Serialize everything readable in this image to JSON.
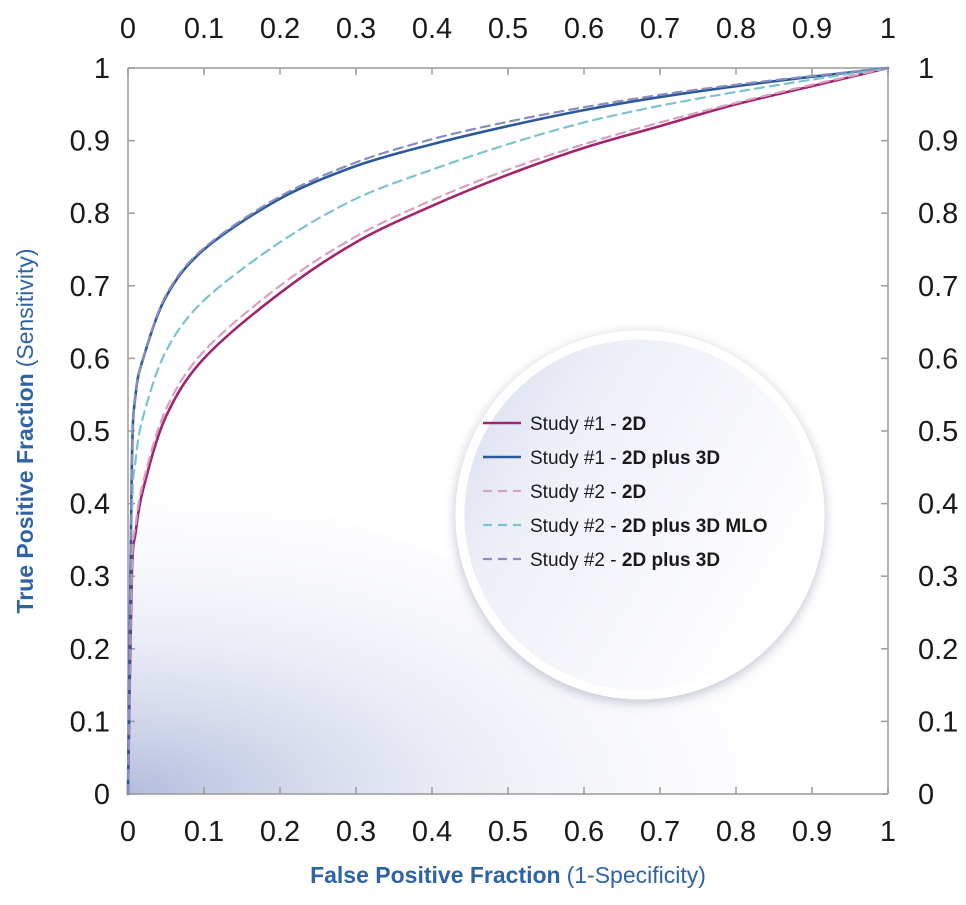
{
  "chart_data": {
    "type": "line",
    "xlabel": {
      "main": "False Positive Fraction",
      "sub": "(1-Specificity)"
    },
    "ylabel": {
      "main": "True Positive Fraction",
      "sub": "(Sensitivity)"
    },
    "xlim": [
      0,
      1
    ],
    "ylim": [
      0,
      1
    ],
    "x_ticks": [
      "0",
      "0.1",
      "0.2",
      "0.3",
      "0.4",
      "0.5",
      "0.6",
      "0.7",
      "0.8",
      "0.9",
      "1"
    ],
    "y_ticks": [
      "0",
      "0.1",
      "0.2",
      "0.3",
      "0.4",
      "0.5",
      "0.6",
      "0.7",
      "0.8",
      "0.9",
      "1"
    ],
    "grid": false,
    "legend_position": "center-right",
    "series": [
      {
        "name_prefix": "Study #1 - ",
        "name_bold": "2D",
        "style": "solid",
        "color": "#a3246e",
        "x": [
          0,
          0.005,
          0.01,
          0.02,
          0.05,
          0.1,
          0.2,
          0.3,
          0.4,
          0.5,
          0.6,
          0.7,
          0.8,
          0.9,
          1.0
        ],
        "y": [
          0,
          0.3,
          0.36,
          0.42,
          0.52,
          0.6,
          0.69,
          0.76,
          0.81,
          0.853,
          0.89,
          0.92,
          0.95,
          0.975,
          1.0
        ]
      },
      {
        "name_prefix": "Study #1 - ",
        "name_bold": "2D plus 3D",
        "style": "solid",
        "color": "#2a5a9a",
        "x": [
          0,
          0.005,
          0.01,
          0.02,
          0.05,
          0.1,
          0.2,
          0.3,
          0.4,
          0.5,
          0.6,
          0.7,
          0.8,
          0.9,
          1.0
        ],
        "y": [
          0,
          0.45,
          0.55,
          0.6,
          0.685,
          0.75,
          0.82,
          0.865,
          0.895,
          0.92,
          0.942,
          0.96,
          0.975,
          0.988,
          1.0
        ]
      },
      {
        "name_prefix": "Study #2 - ",
        "name_bold": "2D",
        "style": "dashed",
        "color": "#d8a0bf",
        "x": [
          0,
          0.005,
          0.01,
          0.02,
          0.05,
          0.1,
          0.2,
          0.3,
          0.4,
          0.5,
          0.6,
          0.7,
          0.8,
          0.9,
          1.0
        ],
        "y": [
          0,
          0.31,
          0.37,
          0.43,
          0.53,
          0.61,
          0.7,
          0.768,
          0.818,
          0.86,
          0.895,
          0.925,
          0.952,
          0.977,
          1.0
        ]
      },
      {
        "name_prefix": "Study #2 - ",
        "name_bold": "2D plus 3D MLO",
        "style": "dashed",
        "color": "#7cc3d0",
        "x": [
          0,
          0.005,
          0.01,
          0.02,
          0.05,
          0.1,
          0.2,
          0.3,
          0.4,
          0.5,
          0.6,
          0.7,
          0.8,
          0.9,
          1.0
        ],
        "y": [
          0,
          0.38,
          0.46,
          0.52,
          0.61,
          0.68,
          0.76,
          0.82,
          0.86,
          0.895,
          0.925,
          0.948,
          0.967,
          0.984,
          1.0
        ]
      },
      {
        "name_prefix": "Study #2 - ",
        "name_bold": "2D plus 3D",
        "style": "dashed",
        "color": "#8a8cc0",
        "x": [
          0,
          0.005,
          0.01,
          0.02,
          0.05,
          0.1,
          0.2,
          0.3,
          0.4,
          0.5,
          0.6,
          0.7,
          0.8,
          0.9,
          1.0
        ],
        "y": [
          0,
          0.45,
          0.55,
          0.6,
          0.687,
          0.752,
          0.823,
          0.87,
          0.902,
          0.926,
          0.946,
          0.963,
          0.977,
          0.989,
          1.0
        ]
      }
    ]
  }
}
